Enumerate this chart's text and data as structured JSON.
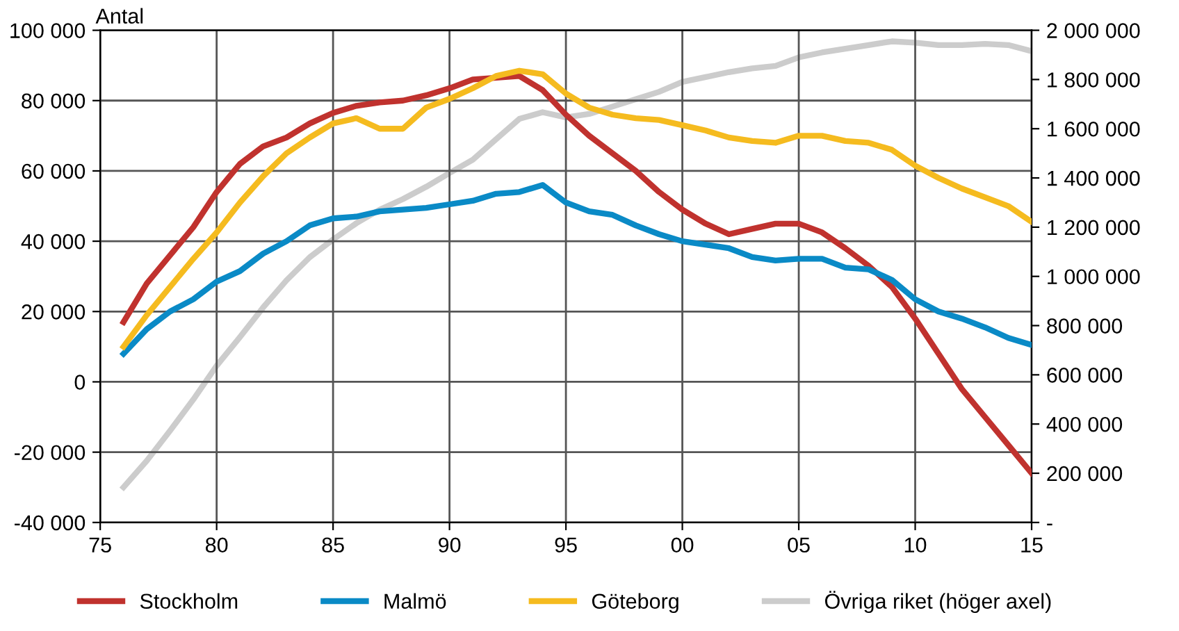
{
  "chart_data": {
    "type": "line",
    "ylabel": "Antal",
    "x": [
      1976,
      1977,
      1978,
      1979,
      1980,
      1981,
      1982,
      1983,
      1984,
      1985,
      1986,
      1987,
      1988,
      1989,
      1990,
      1991,
      1992,
      1993,
      1994,
      1995,
      1996,
      1997,
      1998,
      1999,
      2000,
      2001,
      2002,
      2003,
      2004,
      2005,
      2006,
      2007,
      2008,
      2009,
      2010,
      2011,
      2012,
      2013,
      2014,
      2015
    ],
    "series": [
      {
        "name": "Stockholm",
        "color": "#c0322e",
        "values": [
          17000,
          28000,
          36000,
          44000,
          54000,
          62000,
          67000,
          69500,
          73500,
          76500,
          78500,
          79500,
          80000,
          81500,
          83500,
          86000,
          86500,
          87000,
          83000,
          76000,
          70000,
          65000,
          60000,
          54000,
          49000,
          45000,
          42000,
          43500,
          45000,
          45000,
          42500,
          38000,
          33000,
          27000,
          18000,
          8000,
          -2000,
          -10000,
          -18000,
          -26000
        ]
      },
      {
        "name": "Malmö",
        "color": "#0a8ac6",
        "values": [
          8000,
          15000,
          20000,
          23500,
          28500,
          31500,
          36500,
          40000,
          44500,
          46500,
          47000,
          48500,
          49000,
          49500,
          50500,
          51500,
          53500,
          54000,
          56000,
          51000,
          48500,
          47500,
          44500,
          42000,
          40000,
          39000,
          38000,
          35500,
          34500,
          35000,
          35000,
          32500,
          32000,
          29000,
          23500,
          20000,
          18000,
          15500,
          12500,
          10500
        ]
      },
      {
        "name": "Göteborg",
        "color": "#f5bb1f",
        "values": [
          10000,
          19000,
          27000,
          35000,
          42500,
          51000,
          58500,
          65000,
          69500,
          73500,
          75000,
          72000,
          72000,
          78000,
          80500,
          83500,
          87000,
          88500,
          87500,
          82000,
          78000,
          76000,
          75000,
          74500,
          73000,
          71500,
          69500,
          68500,
          68000,
          70000,
          70000,
          68500,
          68000,
          66000,
          61500,
          58000,
          55000,
          52500,
          50000,
          45500
        ]
      },
      {
        "name": "Övriga riket (höger axel)",
        "color": "#cccccc",
        "axis": "y2",
        "values": [
          143000,
          251000,
          373000,
          500000,
          637000,
          753000,
          874000,
          984000,
          1078000,
          1150000,
          1216000,
          1271000,
          1314000,
          1364000,
          1420000,
          1474000,
          1557000,
          1640000,
          1667000,
          1646000,
          1660000,
          1690000,
          1720000,
          1750000,
          1790000,
          1810000,
          1830000,
          1845000,
          1855000,
          1890000,
          1910000,
          1925000,
          1940000,
          1955000,
          1950000,
          1940000,
          1940000,
          1945000,
          1940000,
          1915000
        ]
      }
    ],
    "xlim": [
      1975,
      2015
    ],
    "xticks": [
      {
        "value": 1975,
        "label": "75"
      },
      {
        "value": 1980,
        "label": "80"
      },
      {
        "value": 1985,
        "label": "85"
      },
      {
        "value": 1990,
        "label": "90"
      },
      {
        "value": 1995,
        "label": "95"
      },
      {
        "value": 2000,
        "label": "00"
      },
      {
        "value": 2005,
        "label": "05"
      },
      {
        "value": 2010,
        "label": "10"
      },
      {
        "value": 2015,
        "label": "15"
      }
    ],
    "ylim": [
      -40000,
      100000
    ],
    "yticks": [
      {
        "value": -40000,
        "label": "-40 000"
      },
      {
        "value": -20000,
        "label": "-20 000"
      },
      0,
      {
        "value": 20000,
        "label": "20 000"
      },
      {
        "value": 40000,
        "label": "40 000"
      },
      {
        "value": 60000,
        "label": "60 000"
      },
      {
        "value": 80000,
        "label": "80 000"
      },
      {
        "value": 100000,
        "label": "100 000"
      }
    ],
    "y2lim": [
      0,
      2000000
    ],
    "y2ticks": [
      {
        "value": 0,
        "label": "-"
      },
      {
        "value": 200000,
        "label": "200 000"
      },
      {
        "value": 400000,
        "label": "400 000"
      },
      {
        "value": 600000,
        "label": "600 000"
      },
      {
        "value": 800000,
        "label": "800 000"
      },
      {
        "value": 1000000,
        "label": "1 000 000"
      },
      {
        "value": 1200000,
        "label": "1 200 000"
      },
      {
        "value": 1400000,
        "label": "1 400 000"
      },
      {
        "value": 1600000,
        "label": "1 600 000"
      },
      {
        "value": 1800000,
        "label": "1 800 000"
      },
      {
        "value": 2000000,
        "label": "2 000 000"
      }
    ],
    "grid": true,
    "legend": "bottom",
    "marker": "none",
    "line_style": "solid"
  }
}
